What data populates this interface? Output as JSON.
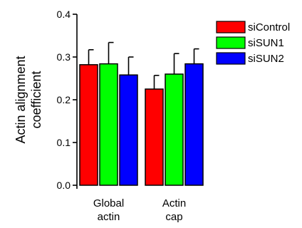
{
  "chart_data": {
    "type": "bar",
    "title": "",
    "ylabel_lines": [
      "Actin alignment",
      "coefficient"
    ],
    "xlabel": "",
    "ylim": [
      0,
      0.4
    ],
    "yticks": [
      "0.0",
      "0.1",
      "0.2",
      "0.3",
      "0.4"
    ],
    "grid": false,
    "legend_position": "top-right",
    "categories": [
      {
        "lines": [
          "Global",
          "actin"
        ]
      },
      {
        "lines": [
          "Actin",
          "cap"
        ]
      }
    ],
    "series": [
      {
        "name": "siControl",
        "color": "#ff0000",
        "values": [
          0.282,
          0.225
        ],
        "errors": [
          0.035,
          0.032
        ]
      },
      {
        "name": "siSUN1",
        "color": "#00ff00",
        "values": [
          0.284,
          0.26
        ],
        "errors": [
          0.05,
          0.048
        ]
      },
      {
        "name": "siSUN2",
        "color": "#0000ff",
        "values": [
          0.258,
          0.284
        ],
        "errors": [
          0.042,
          0.035
        ]
      }
    ]
  }
}
